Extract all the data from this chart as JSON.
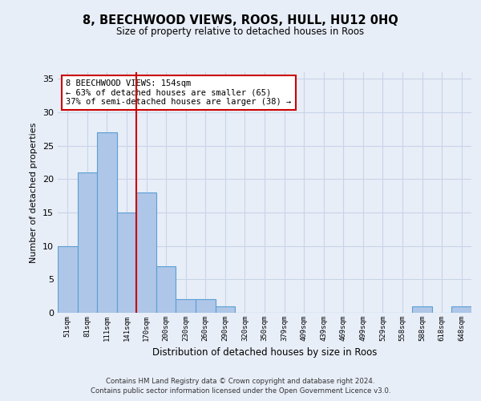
{
  "title": "8, BEECHWOOD VIEWS, ROOS, HULL, HU12 0HQ",
  "subtitle": "Size of property relative to detached houses in Roos",
  "xlabel": "Distribution of detached houses by size in Roos",
  "ylabel": "Number of detached properties",
  "bin_labels": [
    "51sqm",
    "81sqm",
    "111sqm",
    "141sqm",
    "170sqm",
    "200sqm",
    "230sqm",
    "260sqm",
    "290sqm",
    "320sqm",
    "350sqm",
    "379sqm",
    "409sqm",
    "439sqm",
    "469sqm",
    "499sqm",
    "529sqm",
    "558sqm",
    "588sqm",
    "618sqm",
    "648sqm"
  ],
  "bar_heights": [
    10,
    21,
    27,
    15,
    18,
    7,
    2,
    2,
    1,
    0,
    0,
    0,
    0,
    0,
    0,
    0,
    0,
    0,
    1,
    0,
    1
  ],
  "bar_color": "#aec6e8",
  "bar_edge_color": "#5a9fd4",
  "vline_index": 4,
  "annotation_text": "8 BEECHWOOD VIEWS: 154sqm\n← 63% of detached houses are smaller (65)\n37% of semi-detached houses are larger (38) →",
  "annotation_box_facecolor": "#ffffff",
  "annotation_box_edgecolor": "#cc0000",
  "vline_color": "#cc0000",
  "ylim": [
    0,
    36
  ],
  "yticks": [
    0,
    5,
    10,
    15,
    20,
    25,
    30,
    35
  ],
  "grid_color": "#c8d4e8",
  "background_color": "#e8eef8",
  "footer_line1": "Contains HM Land Registry data © Crown copyright and database right 2024.",
  "footer_line2": "Contains public sector information licensed under the Open Government Licence v3.0."
}
